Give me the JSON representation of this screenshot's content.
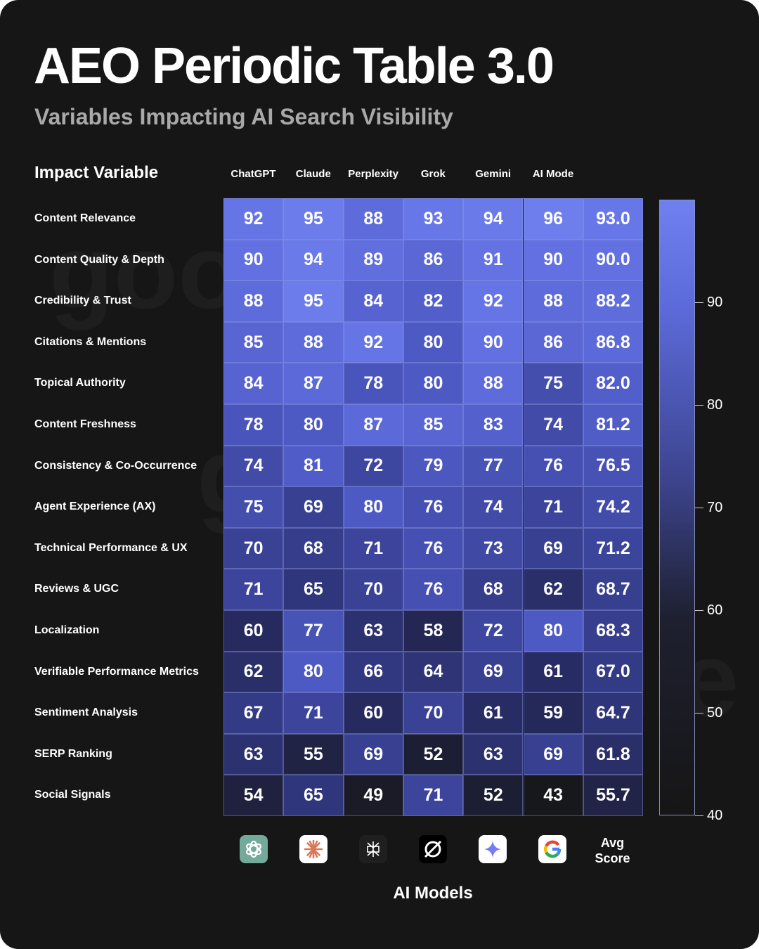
{
  "title": "AEO Periodic Table 3.0",
  "subtitle": "Variables Impacting AI Search Visibility",
  "row_header": "Impact Variable",
  "x_axis_title": "AI Models",
  "avg_label": "Avg Score",
  "columns": [
    "ChatGPT",
    "Claude",
    "Perplexity",
    "Grok",
    "Gemini",
    "AI Mode"
  ],
  "icons": [
    {
      "name": "chatgpt-icon",
      "bg": "#74aa9c"
    },
    {
      "name": "claude-icon",
      "bg": "#ffffff"
    },
    {
      "name": "perplexity-icon",
      "bg": "#1f1f1f"
    },
    {
      "name": "grok-icon",
      "bg": "#000000"
    },
    {
      "name": "gemini-icon",
      "bg": "#ffffff"
    },
    {
      "name": "google-icon",
      "bg": "#ffffff"
    }
  ],
  "colorbar": {
    "min": 40,
    "max": 100,
    "ticks": [
      90,
      80,
      70,
      60,
      50,
      40
    ],
    "colors": {
      "high": "#6f80f0",
      "mid": "#3d4590",
      "low": "#161616"
    }
  },
  "chart_data": {
    "type": "heatmap",
    "rows": [
      "Content Relevance",
      "Content Quality & Depth",
      "Credibility & Trust",
      "Citations & Mentions",
      "Topical Authority",
      "Content Freshness",
      "Consistency & Co-Occurrence",
      "Agent Experience (AX)",
      "Technical Performance & UX",
      "Reviews & UGC",
      "Localization",
      "Verifiable Performance Metrics",
      "Sentiment Analysis",
      "SERP Ranking",
      "Social Signals"
    ],
    "columns": [
      "ChatGPT",
      "Claude",
      "Perplexity",
      "Grok",
      "Gemini",
      "AI Mode",
      "Avg Score"
    ],
    "values": [
      [
        92,
        95,
        88,
        93,
        94,
        96,
        "93.0"
      ],
      [
        90,
        94,
        89,
        86,
        91,
        90,
        "90.0"
      ],
      [
        88,
        95,
        84,
        82,
        92,
        88,
        "88.2"
      ],
      [
        85,
        88,
        92,
        80,
        90,
        86,
        "86.8"
      ],
      [
        84,
        87,
        78,
        80,
        88,
        75,
        "82.0"
      ],
      [
        78,
        80,
        87,
        85,
        83,
        74,
        "81.2"
      ],
      [
        74,
        81,
        72,
        79,
        77,
        76,
        "76.5"
      ],
      [
        75,
        69,
        80,
        76,
        74,
        71,
        "74.2"
      ],
      [
        70,
        68,
        71,
        76,
        73,
        69,
        "71.2"
      ],
      [
        71,
        65,
        70,
        76,
        68,
        62,
        "68.7"
      ],
      [
        60,
        77,
        63,
        58,
        72,
        80,
        "68.3"
      ],
      [
        62,
        80,
        66,
        64,
        69,
        61,
        "67.0"
      ],
      [
        67,
        71,
        60,
        70,
        61,
        59,
        "64.7"
      ],
      [
        63,
        55,
        69,
        52,
        63,
        69,
        "61.8"
      ],
      [
        54,
        65,
        49,
        71,
        52,
        43,
        "55.7"
      ]
    ],
    "xlabel": "AI Models",
    "ylabel": "Impact Variable"
  }
}
